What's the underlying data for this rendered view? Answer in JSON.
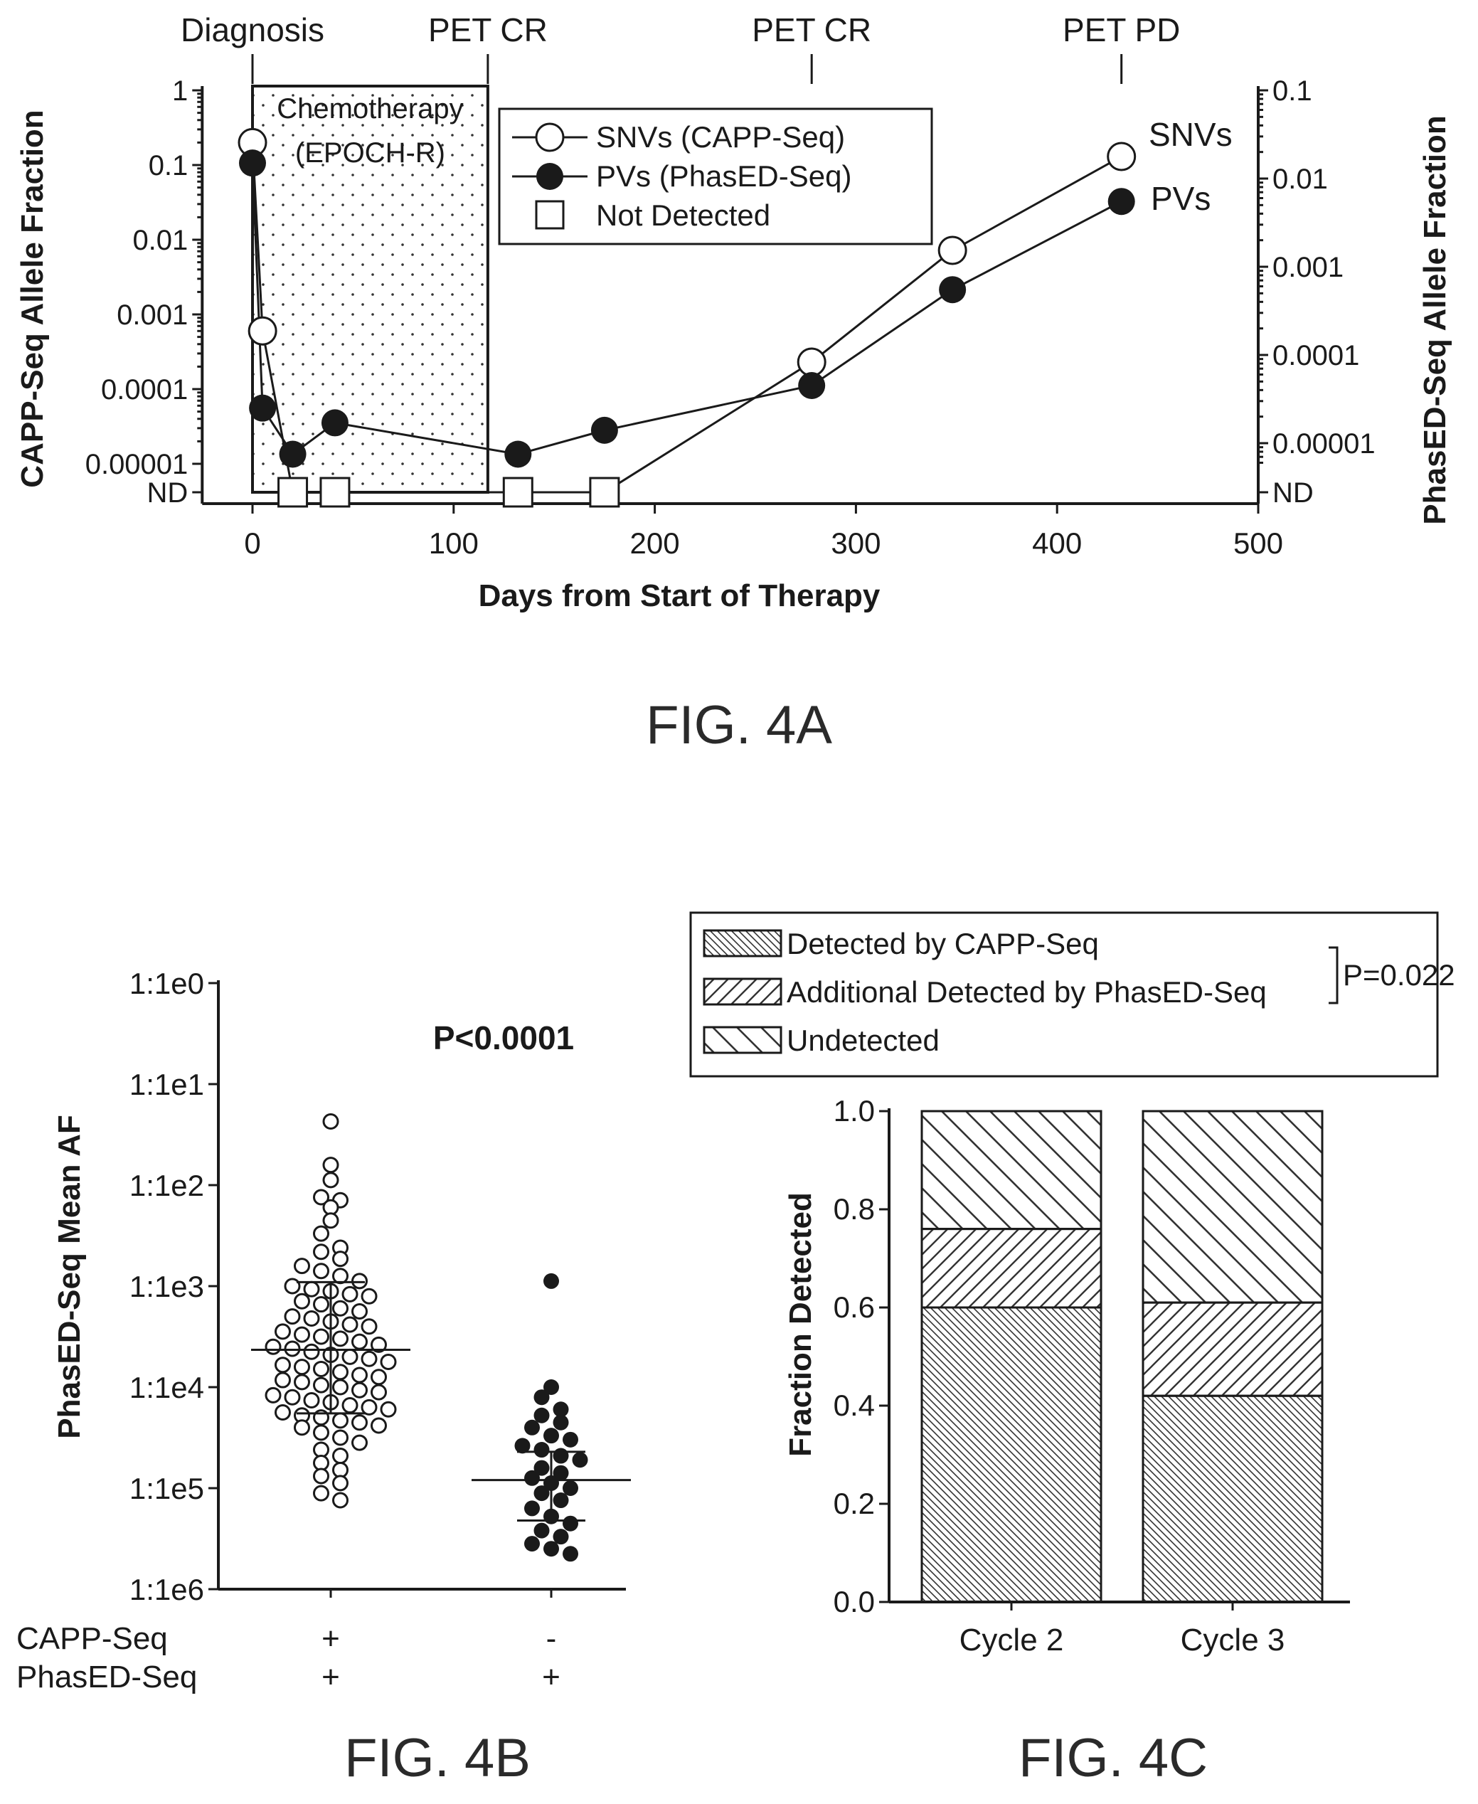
{
  "chart_data": [
    {
      "id": "fig4a",
      "type": "line",
      "caption": "FIG. 4A",
      "xlabel": "Days from Start of Therapy",
      "ylabel_left": "CAPP-Seq Allele Fraction",
      "ylabel_right": "PhasED-Seq Allele Fraction",
      "x_ticks": [
        "0",
        "100",
        "200",
        "300",
        "400",
        "500"
      ],
      "xlim": [
        -25,
        500
      ],
      "y_scale": "log",
      "y_ticks_left": [
        "1",
        "0.1",
        "0.01",
        "0.001",
        "0.0001",
        "0.00001",
        "ND"
      ],
      "y_ticks_right": [
        "0.1",
        "0.01",
        "0.001",
        "0.0001",
        "0.00001",
        "ND"
      ],
      "ylim_left": [
        3e-06,
        1
      ],
      "ylim_right": [
        3e-07,
        0.1
      ],
      "events": [
        {
          "label": "Diagnosis",
          "x": 0
        },
        {
          "label": "PET CR",
          "x": 117
        },
        {
          "label": "PET CR",
          "x": 278
        },
        {
          "label": "PET PD",
          "x": 432
        }
      ],
      "shaded_region": {
        "label_line1": "Chemotherapy",
        "label_line2": "(EPOCH-R)",
        "x": [
          0,
          117
        ]
      },
      "legend": {
        "position": "top-center",
        "entries": [
          {
            "label": "SNVs (CAPP-Seq)",
            "marker": "open-circle"
          },
          {
            "label": "PVs (PhasED-Seq)",
            "marker": "filled-circle"
          },
          {
            "label": "Not Detected",
            "marker": "open-square"
          }
        ]
      },
      "end_labels": {
        "snv": "SNVs",
        "pv": "PVs"
      },
      "series": [
        {
          "name": "SNVs",
          "axis": "left",
          "marker": "open-circle",
          "points": [
            [
              0,
              0.2
            ],
            [
              5,
              0.0006
            ],
            [
              20,
              "ND"
            ],
            [
              41,
              "ND"
            ],
            [
              132,
              "ND"
            ],
            [
              175,
              "ND"
            ],
            [
              278,
              0.00023
            ],
            [
              348,
              0.0072
            ],
            [
              432,
              0.13
            ]
          ]
        },
        {
          "name": "PVs",
          "axis": "right",
          "marker": "filled-circle",
          "points": [
            [
              0,
              0.015
            ],
            [
              5,
              2.5e-05
            ],
            [
              20,
              7.5e-06
            ],
            [
              41,
              1.7e-05
            ],
            [
              132,
              7.5e-06
            ],
            [
              175,
              1.4e-05
            ],
            [
              278,
              4.5e-05
            ],
            [
              348,
              0.00055
            ],
            [
              432,
              0.0055
            ]
          ]
        }
      ]
    },
    {
      "id": "fig4b",
      "type": "scatter",
      "caption": "FIG. 4B",
      "ylabel": "PhasED-Seq Mean AF",
      "y_scale": "log-inverse",
      "y_ticks": [
        "1:1e0",
        "1:1e1",
        "1:1e2",
        "1:1e3",
        "1:1e4",
        "1:1e5",
        "1:1e6"
      ],
      "ylim_exponent": [
        0,
        6
      ],
      "annotation": "P<0.0001",
      "row_labels": [
        "CAPP-Seq",
        "PhasED-Seq"
      ],
      "groups": [
        {
          "capp": "+",
          "phased": "+",
          "marker": "open-circle",
          "median_exponent": 3.63,
          "iqr_exponent": [
            2.96,
            4.26
          ],
          "log10_denominator": [
            1.37,
            1.8,
            1.95,
            2.12,
            2.15,
            2.22,
            2.35,
            2.48,
            2.62,
            2.66,
            2.73,
            2.8,
            2.85,
            2.9,
            2.95,
            3.0,
            3.03,
            3.05,
            3.08,
            3.1,
            3.15,
            3.18,
            3.22,
            3.25,
            3.3,
            3.32,
            3.35,
            3.38,
            3.4,
            3.45,
            3.48,
            3.5,
            3.52,
            3.55,
            3.58,
            3.6,
            3.62,
            3.65,
            3.68,
            3.7,
            3.72,
            3.75,
            3.78,
            3.8,
            3.82,
            3.85,
            3.88,
            3.9,
            3.93,
            3.95,
            3.98,
            4.0,
            4.03,
            4.05,
            4.08,
            4.1,
            4.13,
            4.15,
            4.18,
            4.2,
            4.22,
            4.25,
            4.28,
            4.3,
            4.33,
            4.35,
            4.38,
            4.4,
            4.45,
            4.5,
            4.55,
            4.62,
            4.68,
            4.75,
            4.82,
            4.88,
            4.95,
            5.05,
            5.12
          ]
        },
        {
          "capp": "-",
          "phased": "+",
          "marker": "filled-circle",
          "median_exponent": 4.92,
          "iqr_exponent": [
            4.64,
            5.32
          ],
          "log10_denominator": [
            2.95,
            4.0,
            4.1,
            4.22,
            4.28,
            4.35,
            4.4,
            4.48,
            4.52,
            4.58,
            4.62,
            4.68,
            4.72,
            4.8,
            4.85,
            4.9,
            4.95,
            5.0,
            5.05,
            5.12,
            5.2,
            5.28,
            5.35,
            5.42,
            5.48,
            5.55,
            5.6,
            5.65
          ]
        }
      ]
    },
    {
      "id": "fig4c",
      "type": "bar",
      "stacked": true,
      "caption": "FIG. 4C",
      "ylabel": "Fraction Detected",
      "ylim": [
        0,
        1
      ],
      "y_ticks": [
        "0.0",
        "0.2",
        "0.4",
        "0.6",
        "0.8",
        "1.0"
      ],
      "categories": [
        "Cycle 2",
        "Cycle 3"
      ],
      "legend_position": "top",
      "annotation": "P=0.022",
      "series": [
        {
          "name": "Detected by CAPP-Seq",
          "pattern": "dense-diagonal",
          "values": [
            0.6,
            0.42
          ]
        },
        {
          "name": "Additional Detected by PhasED-Seq",
          "pattern": "medium-diagonal",
          "values": [
            0.16,
            0.19
          ]
        },
        {
          "name": "Undetected",
          "pattern": "backslash",
          "values": [
            0.24,
            0.39
          ]
        }
      ]
    }
  ]
}
